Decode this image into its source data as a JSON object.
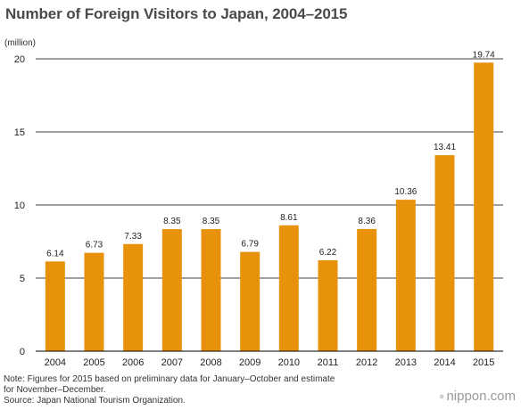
{
  "title": "Number of Foreign Visitors to Japan, 2004–2015",
  "unit_label": "(million)",
  "notes": [
    "Note: Figures for 2015 based on preliminary data for January–October and estimate",
    "for November–December.",
    "Source: Japan National Tourism Organization."
  ],
  "brand": "nippon.com",
  "colors": {
    "bar": "#e8920c",
    "grid": "#000000"
  },
  "chart_data": {
    "type": "bar",
    "title": "Number of Foreign Visitors to Japan, 2004–2015",
    "xlabel": "",
    "ylabel": "(million)",
    "categories": [
      "2004",
      "2005",
      "2006",
      "2007",
      "2008",
      "2009",
      "2010",
      "2011",
      "2012",
      "2013",
      "2014",
      "2015"
    ],
    "values": [
      6.14,
      6.73,
      7.33,
      8.35,
      8.35,
      6.79,
      8.61,
      6.22,
      8.36,
      10.36,
      13.41,
      19.74
    ],
    "value_labels": [
      "6.14",
      "6.73",
      "7.33",
      "8.35",
      "8.35",
      "6.79",
      "8.61",
      "6.22",
      "8.36",
      "10.36",
      "13.41",
      "19.74"
    ],
    "ylim": [
      0,
      20
    ],
    "yticks": [
      0,
      5,
      10,
      15,
      20
    ],
    "grid": true,
    "legend": "none"
  }
}
